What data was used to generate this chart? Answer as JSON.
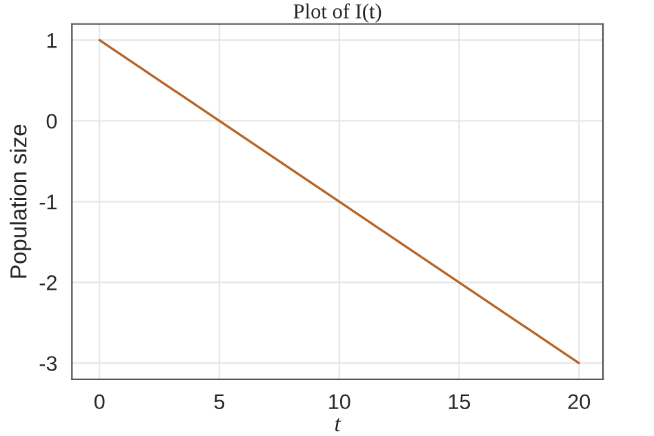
{
  "chart_data": {
    "type": "line",
    "title": "Plot of I(t)",
    "xlabel": "t",
    "ylabel": "Population size",
    "x": [
      0,
      20
    ],
    "series": [
      {
        "color": "#b5652a",
        "values": [
          1,
          -3
        ]
      }
    ],
    "xlim": [
      -1.15,
      21
    ],
    "ylim": [
      -3.2,
      1.2
    ],
    "xticks": [
      0,
      5,
      10,
      15,
      20
    ],
    "yticks": [
      {
        "value": -3,
        "label": "-3"
      },
      {
        "value": -2,
        "label": "-2"
      },
      {
        "value": -1,
        "label": "-1"
      },
      0,
      1
    ],
    "grid": true,
    "marker": "none",
    "line_style": "solid"
  }
}
